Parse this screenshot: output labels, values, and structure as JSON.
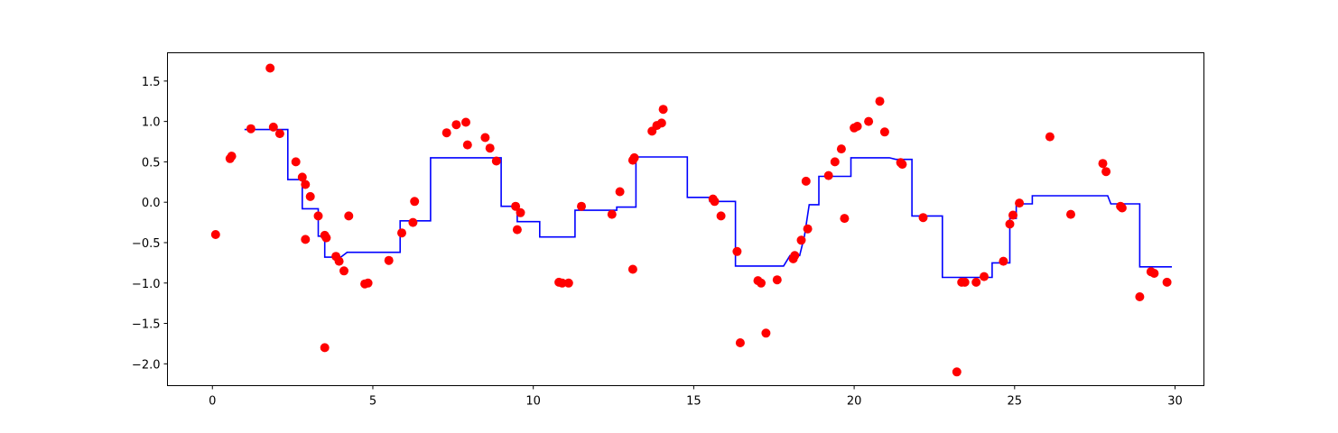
{
  "chart_data": {
    "type": "scatter",
    "title": "",
    "xlabel": "",
    "ylabel": "",
    "xlim": [
      -1.4,
      30.9
    ],
    "ylim": [
      -2.27,
      1.85
    ],
    "x_ticks": [
      0,
      5,
      10,
      15,
      20,
      25,
      30
    ],
    "y_ticks": [
      -2.0,
      -1.5,
      -1.0,
      -0.5,
      0.0,
      0.5,
      1.0,
      1.5
    ],
    "x_tick_labels": [
      "0",
      "5",
      "10",
      "15",
      "20",
      "25",
      "30"
    ],
    "y_tick_labels": [
      "−2.0",
      "−1.5",
      "−1.0",
      "−0.5",
      "0.0",
      "0.5",
      "1.0",
      "1.5"
    ],
    "grid": false,
    "series": [
      {
        "kind": "scatter",
        "color": "#ff0000",
        "points": [
          [
            0.1,
            -0.4
          ],
          [
            0.55,
            0.54
          ],
          [
            0.6,
            0.57
          ],
          [
            1.2,
            0.91
          ],
          [
            1.8,
            1.66
          ],
          [
            1.9,
            0.93
          ],
          [
            2.1,
            0.85
          ],
          [
            2.6,
            0.5
          ],
          [
            2.8,
            0.31
          ],
          [
            2.9,
            0.22
          ],
          [
            2.9,
            -0.46
          ],
          [
            3.05,
            0.07
          ],
          [
            3.3,
            -0.17
          ],
          [
            3.5,
            -0.41
          ],
          [
            3.55,
            -0.44
          ],
          [
            3.5,
            -1.8
          ],
          [
            3.85,
            -0.67
          ],
          [
            3.95,
            -0.73
          ],
          [
            4.1,
            -0.85
          ],
          [
            4.25,
            -0.17
          ],
          [
            4.75,
            -1.01
          ],
          [
            4.85,
            -1.0
          ],
          [
            5.5,
            -0.72
          ],
          [
            5.9,
            -0.38
          ],
          [
            6.25,
            -0.25
          ],
          [
            6.3,
            0.01
          ],
          [
            7.3,
            0.86
          ],
          [
            7.6,
            0.96
          ],
          [
            7.9,
            0.99
          ],
          [
            7.95,
            0.71
          ],
          [
            8.5,
            0.8
          ],
          [
            8.65,
            0.67
          ],
          [
            8.85,
            0.51
          ],
          [
            9.45,
            -0.05
          ],
          [
            9.5,
            -0.34
          ],
          [
            9.6,
            -0.13
          ],
          [
            10.8,
            -0.99
          ],
          [
            10.9,
            -1.0
          ],
          [
            11.1,
            -1.0
          ],
          [
            11.5,
            -0.05
          ],
          [
            12.45,
            -0.15
          ],
          [
            12.7,
            0.13
          ],
          [
            13.1,
            0.52
          ],
          [
            13.15,
            0.55
          ],
          [
            13.1,
            -0.83
          ],
          [
            13.7,
            0.88
          ],
          [
            13.85,
            0.95
          ],
          [
            14.0,
            0.98
          ],
          [
            14.05,
            1.15
          ],
          [
            15.6,
            0.04
          ],
          [
            15.65,
            0.01
          ],
          [
            15.85,
            -0.17
          ],
          [
            16.35,
            -0.61
          ],
          [
            16.45,
            -1.74
          ],
          [
            17.0,
            -0.97
          ],
          [
            17.1,
            -1.0
          ],
          [
            17.25,
            -1.62
          ],
          [
            17.6,
            -0.96
          ],
          [
            18.1,
            -0.7
          ],
          [
            18.15,
            -0.66
          ],
          [
            18.35,
            -0.47
          ],
          [
            18.5,
            0.26
          ],
          [
            18.55,
            -0.33
          ],
          [
            19.2,
            0.33
          ],
          [
            19.4,
            0.5
          ],
          [
            19.6,
            0.66
          ],
          [
            19.7,
            -0.2
          ],
          [
            20.0,
            0.92
          ],
          [
            20.1,
            0.94
          ],
          [
            20.45,
            1.0
          ],
          [
            20.8,
            1.25
          ],
          [
            20.95,
            0.87
          ],
          [
            21.45,
            0.49
          ],
          [
            21.5,
            0.47
          ],
          [
            22.15,
            -0.19
          ],
          [
            23.2,
            -2.1
          ],
          [
            23.35,
            -0.99
          ],
          [
            23.45,
            -0.99
          ],
          [
            23.8,
            -0.99
          ],
          [
            24.05,
            -0.92
          ],
          [
            24.65,
            -0.73
          ],
          [
            24.85,
            -0.27
          ],
          [
            24.95,
            -0.16
          ],
          [
            25.15,
            -0.01
          ],
          [
            26.1,
            0.81
          ],
          [
            26.75,
            -0.15
          ],
          [
            27.75,
            0.48
          ],
          [
            27.85,
            0.38
          ],
          [
            28.3,
            -0.05
          ],
          [
            28.35,
            -0.07
          ],
          [
            28.9,
            -1.17
          ],
          [
            29.25,
            -0.86
          ],
          [
            29.35,
            -0.88
          ],
          [
            29.75,
            -0.99
          ]
        ]
      },
      {
        "kind": "line",
        "color": "#0000ff",
        "drawstyle": "steps",
        "points": [
          [
            1.0,
            0.9
          ],
          [
            2.35,
            0.9
          ],
          [
            2.35,
            0.28
          ],
          [
            2.8,
            0.28
          ],
          [
            2.8,
            -0.08
          ],
          [
            3.3,
            -0.08
          ],
          [
            3.3,
            -0.42
          ],
          [
            3.5,
            -0.42
          ],
          [
            3.5,
            -0.68
          ],
          [
            4.0,
            -0.68
          ],
          [
            4.2,
            -0.62
          ],
          [
            5.85,
            -0.62
          ],
          [
            5.85,
            -0.23
          ],
          [
            6.8,
            -0.23
          ],
          [
            6.8,
            0.55
          ],
          [
            9.0,
            0.55
          ],
          [
            9.0,
            -0.05
          ],
          [
            9.5,
            -0.05
          ],
          [
            9.5,
            -0.24
          ],
          [
            10.2,
            -0.24
          ],
          [
            10.2,
            -0.43
          ],
          [
            11.3,
            -0.43
          ],
          [
            11.3,
            -0.1
          ],
          [
            12.6,
            -0.1
          ],
          [
            12.6,
            -0.06
          ],
          [
            13.2,
            -0.06
          ],
          [
            13.2,
            0.56
          ],
          [
            14.8,
            0.56
          ],
          [
            14.8,
            0.06
          ],
          [
            15.5,
            0.06
          ],
          [
            15.5,
            0.01
          ],
          [
            16.3,
            0.01
          ],
          [
            16.3,
            -0.79
          ],
          [
            17.8,
            -0.79
          ],
          [
            18.0,
            -0.66
          ],
          [
            18.3,
            -0.66
          ],
          [
            18.45,
            -0.42
          ],
          [
            18.6,
            -0.03
          ],
          [
            18.9,
            -0.03
          ],
          [
            18.9,
            0.32
          ],
          [
            19.9,
            0.32
          ],
          [
            19.9,
            0.55
          ],
          [
            21.1,
            0.55
          ],
          [
            21.3,
            0.53
          ],
          [
            21.8,
            0.53
          ],
          [
            21.8,
            -0.17
          ],
          [
            22.75,
            -0.17
          ],
          [
            22.75,
            -0.93
          ],
          [
            24.3,
            -0.93
          ],
          [
            24.3,
            -0.75
          ],
          [
            24.85,
            -0.75
          ],
          [
            24.85,
            -0.2
          ],
          [
            25.05,
            -0.2
          ],
          [
            25.05,
            -0.02
          ],
          [
            25.55,
            -0.02
          ],
          [
            25.55,
            0.08
          ],
          [
            27.1,
            0.08
          ],
          [
            27.9,
            0.08
          ],
          [
            28.0,
            -0.02
          ],
          [
            28.9,
            -0.02
          ],
          [
            28.9,
            -0.8
          ],
          [
            29.9,
            -0.8
          ]
        ]
      }
    ]
  }
}
